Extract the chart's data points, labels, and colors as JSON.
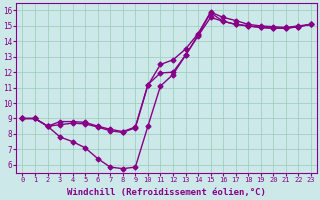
{
  "bg_color": "#cce8e8",
  "line_color": "#880088",
  "markersize": 2.5,
  "linewidth": 1.0,
  "xlabel": "Windchill (Refroidissement éolien,°C)",
  "xlabel_fontsize": 6.5,
  "ylabel_ticks": [
    6,
    7,
    8,
    9,
    10,
    11,
    12,
    13,
    14,
    15,
    16
  ],
  "xlabel_ticks": [
    0,
    1,
    2,
    3,
    4,
    5,
    6,
    7,
    8,
    9,
    10,
    11,
    12,
    13,
    14,
    15,
    16,
    17,
    18,
    19,
    20,
    21,
    22,
    23
  ],
  "xlim": [
    -0.5,
    23.5
  ],
  "ylim": [
    5.5,
    16.5
  ],
  "line1_x": [
    0,
    1,
    2,
    3,
    4,
    5,
    6,
    7,
    8,
    9,
    10,
    11,
    12,
    13,
    14,
    15,
    16,
    17,
    18,
    19,
    20,
    21,
    22,
    23
  ],
  "line1_y": [
    9.0,
    9.0,
    8.5,
    7.8,
    7.5,
    7.1,
    6.4,
    5.85,
    5.75,
    5.85,
    8.5,
    11.1,
    11.85,
    13.1,
    14.4,
    15.85,
    15.3,
    15.1,
    15.0,
    14.9,
    14.85,
    14.85,
    14.95,
    15.1
  ],
  "line2_x": [
    0,
    1,
    2,
    3,
    4,
    5,
    6,
    7,
    8,
    9,
    10,
    11,
    12,
    13,
    14,
    15,
    16,
    17,
    18,
    19,
    20,
    21,
    22,
    23
  ],
  "line2_y": [
    9.0,
    9.0,
    8.5,
    8.8,
    8.8,
    8.75,
    8.5,
    8.3,
    8.15,
    8.45,
    11.2,
    11.95,
    12.0,
    13.1,
    14.35,
    15.55,
    15.3,
    15.1,
    15.0,
    14.9,
    14.85,
    14.85,
    14.95,
    15.1
  ],
  "line3_x": [
    0,
    1,
    2,
    3,
    4,
    5,
    6,
    7,
    8,
    9,
    10,
    11,
    12,
    13,
    14,
    15,
    16,
    17,
    18,
    19,
    20,
    21,
    22,
    23
  ],
  "line3_y": [
    9.0,
    9.0,
    8.5,
    8.6,
    8.7,
    8.65,
    8.45,
    8.2,
    8.1,
    8.4,
    11.15,
    12.5,
    12.8,
    13.5,
    14.5,
    15.9,
    15.55,
    15.35,
    15.1,
    15.0,
    14.95,
    14.9,
    15.0,
    15.1
  ]
}
